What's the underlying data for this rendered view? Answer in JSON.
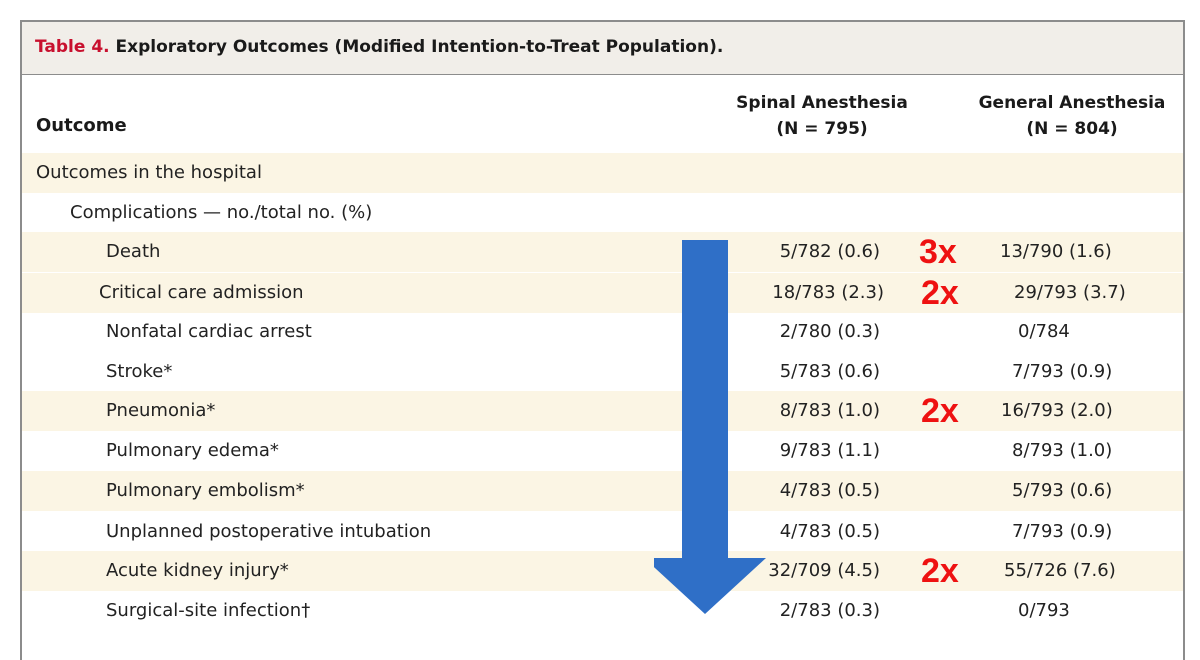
{
  "table": {
    "label": "Table 4.",
    "caption": " Exploratory Outcomes (Modified Intention-to-Treat Population).",
    "header": {
      "outcome": "Outcome",
      "spinal": "Spinal Anesthesia",
      "spinal_n": "(N = 795)",
      "general": "General Anesthesia",
      "general_n": "(N = 804)"
    },
    "rows": [
      {
        "label": "Outcomes in the hospital",
        "spinal": "",
        "general": "",
        "mult": ""
      },
      {
        "label": "Complications — no./total no. (%)",
        "spinal": "",
        "general": "",
        "mult": ""
      },
      {
        "label": "Death",
        "spinal": "5/782 (0.6)",
        "general": "13/790 (1.6)",
        "mult": "3x"
      },
      {
        "label": "Critical care admission",
        "spinal": "18/783 (2.3)",
        "general": "29/793 (3.7)",
        "mult": "2x"
      },
      {
        "label": "Nonfatal cardiac arrest",
        "spinal": "2/780 (0.3)",
        "general": "0/784",
        "mult": ""
      },
      {
        "label": "Stroke*",
        "spinal": "5/783 (0.6)",
        "general": "7/793 (0.9)",
        "mult": ""
      },
      {
        "label": "Pneumonia*",
        "spinal": "8/783 (1.0)",
        "general": "16/793 (2.0)",
        "mult": "2x"
      },
      {
        "label": "Pulmonary edema*",
        "spinal": "9/783 (1.1)",
        "general": "8/793 (1.0)",
        "mult": ""
      },
      {
        "label": "Pulmonary embolism*",
        "spinal": "4/783 (0.5)",
        "general": "5/793 (0.6)",
        "mult": ""
      },
      {
        "label": "Unplanned postoperative intubation",
        "spinal": "4/783 (0.5)",
        "general": "7/793 (0.9)",
        "mult": ""
      },
      {
        "label": "Acute kidney injury*",
        "spinal": "32/709 (4.5)",
        "general": "55/726 (7.6)",
        "mult": "2x"
      },
      {
        "label": "Surgical-site infection†",
        "spinal": "2/783 (0.3)",
        "general": "0/793",
        "mult": ""
      }
    ]
  },
  "colors": {
    "label_red": "#c8102e",
    "mult_red": "#ee1111",
    "arrow_blue": "#2f6fc7",
    "row_shade": "#fbf5e4",
    "title_bg": "#f1eee9"
  }
}
